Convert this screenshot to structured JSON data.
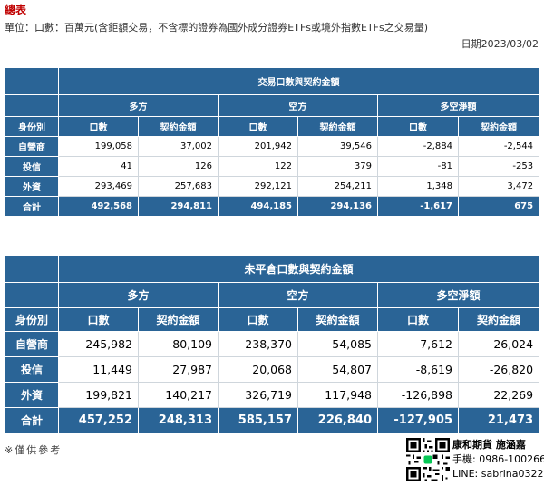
{
  "page": {
    "title": "總表",
    "unit_note": "單位：口數：百萬元(含鉅額交易，不含標的證券為國外成分證券ETFs或境外指數ETFs之交易量)",
    "date": "日期2023/03/02",
    "footnote": "※僅供參考"
  },
  "table1": {
    "group_title": "交易口數與契約金額",
    "groups": [
      "多方",
      "空方",
      "多空淨額"
    ],
    "columns": [
      "身份別",
      "口數",
      "契約金額",
      "口數",
      "契約金額",
      "口數",
      "契約金額"
    ],
    "rows": [
      {
        "label": "自營商",
        "cells": [
          "199,058",
          "37,002",
          "201,942",
          "39,546",
          "-2,884",
          "-2,544"
        ]
      },
      {
        "label": "投信",
        "cells": [
          "41",
          "126",
          "122",
          "379",
          "-81",
          "-253"
        ]
      },
      {
        "label": "外資",
        "cells": [
          "293,469",
          "257,683",
          "292,121",
          "254,211",
          "1,348",
          "3,472"
        ]
      }
    ],
    "total": {
      "label": "合計",
      "cells": [
        "492,568",
        "294,811",
        "494,185",
        "294,136",
        "-1,617",
        "675"
      ]
    }
  },
  "table2": {
    "group_title": "未平倉口數與契約金額",
    "groups": [
      "多方",
      "空方",
      "多空淨額"
    ],
    "columns": [
      "身份別",
      "口數",
      "契約金額",
      "口數",
      "契約金額",
      "口數",
      "契約金額"
    ],
    "rows": [
      {
        "label": "自營商",
        "cells": [
          "245,982",
          "80,109",
          "238,370",
          "54,085",
          "7,612",
          "26,024"
        ]
      },
      {
        "label": "投信",
        "cells": [
          "11,449",
          "27,987",
          "20,068",
          "54,807",
          "-8,619",
          "-26,820"
        ]
      },
      {
        "label": "外資",
        "cells": [
          "199,821",
          "140,217",
          "326,719",
          "117,948",
          "-126,898",
          "22,269"
        ]
      }
    ],
    "total": {
      "label": "合計",
      "cells": [
        "457,252",
        "248,313",
        "585,157",
        "226,840",
        "-127,905",
        "21,473"
      ]
    }
  },
  "contact": {
    "name": "康和期貨 施涵嘉",
    "phone": "手機: 0986-100266",
    "line": "LINE: sabrina0322",
    "qr_icon": "qr-code-icon"
  },
  "colors": {
    "header_blue": "#2a6496",
    "title_red": "#c00000"
  }
}
